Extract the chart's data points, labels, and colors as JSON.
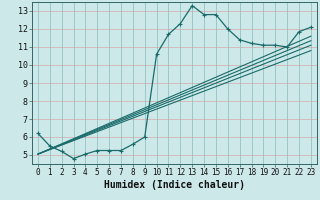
{
  "xlabel": "Humidex (Indice chaleur)",
  "bg_color": "#cce8e8",
  "line_color": "#1a6b6b",
  "xlim": [
    -0.5,
    23.5
  ],
  "ylim": [
    4.5,
    13.5
  ],
  "xticks": [
    0,
    1,
    2,
    3,
    4,
    5,
    6,
    7,
    8,
    9,
    10,
    11,
    12,
    13,
    14,
    15,
    16,
    17,
    18,
    19,
    20,
    21,
    22,
    23
  ],
  "yticks": [
    5,
    6,
    7,
    8,
    9,
    10,
    11,
    12,
    13
  ],
  "main_x": [
    0,
    1,
    2,
    3,
    4,
    5,
    6,
    7,
    8,
    9,
    10,
    11,
    12,
    13,
    14,
    15,
    16,
    17,
    18,
    19,
    20,
    21,
    22,
    23
  ],
  "main_y": [
    6.2,
    5.5,
    5.2,
    4.8,
    5.05,
    5.25,
    5.25,
    5.25,
    5.6,
    6.0,
    10.6,
    11.7,
    12.3,
    13.3,
    12.8,
    12.8,
    12.0,
    11.4,
    11.2,
    11.1,
    11.1,
    11.0,
    11.85,
    12.1
  ],
  "line1_x": [
    0,
    23
  ],
  "line1_y": [
    5.05,
    11.1
  ],
  "line2_x": [
    0,
    23
  ],
  "line2_y": [
    5.05,
    11.35
  ],
  "line3_x": [
    0,
    23
  ],
  "line3_y": [
    5.05,
    11.6
  ],
  "line4_x": [
    0,
    23
  ],
  "line4_y": [
    5.05,
    10.8
  ]
}
